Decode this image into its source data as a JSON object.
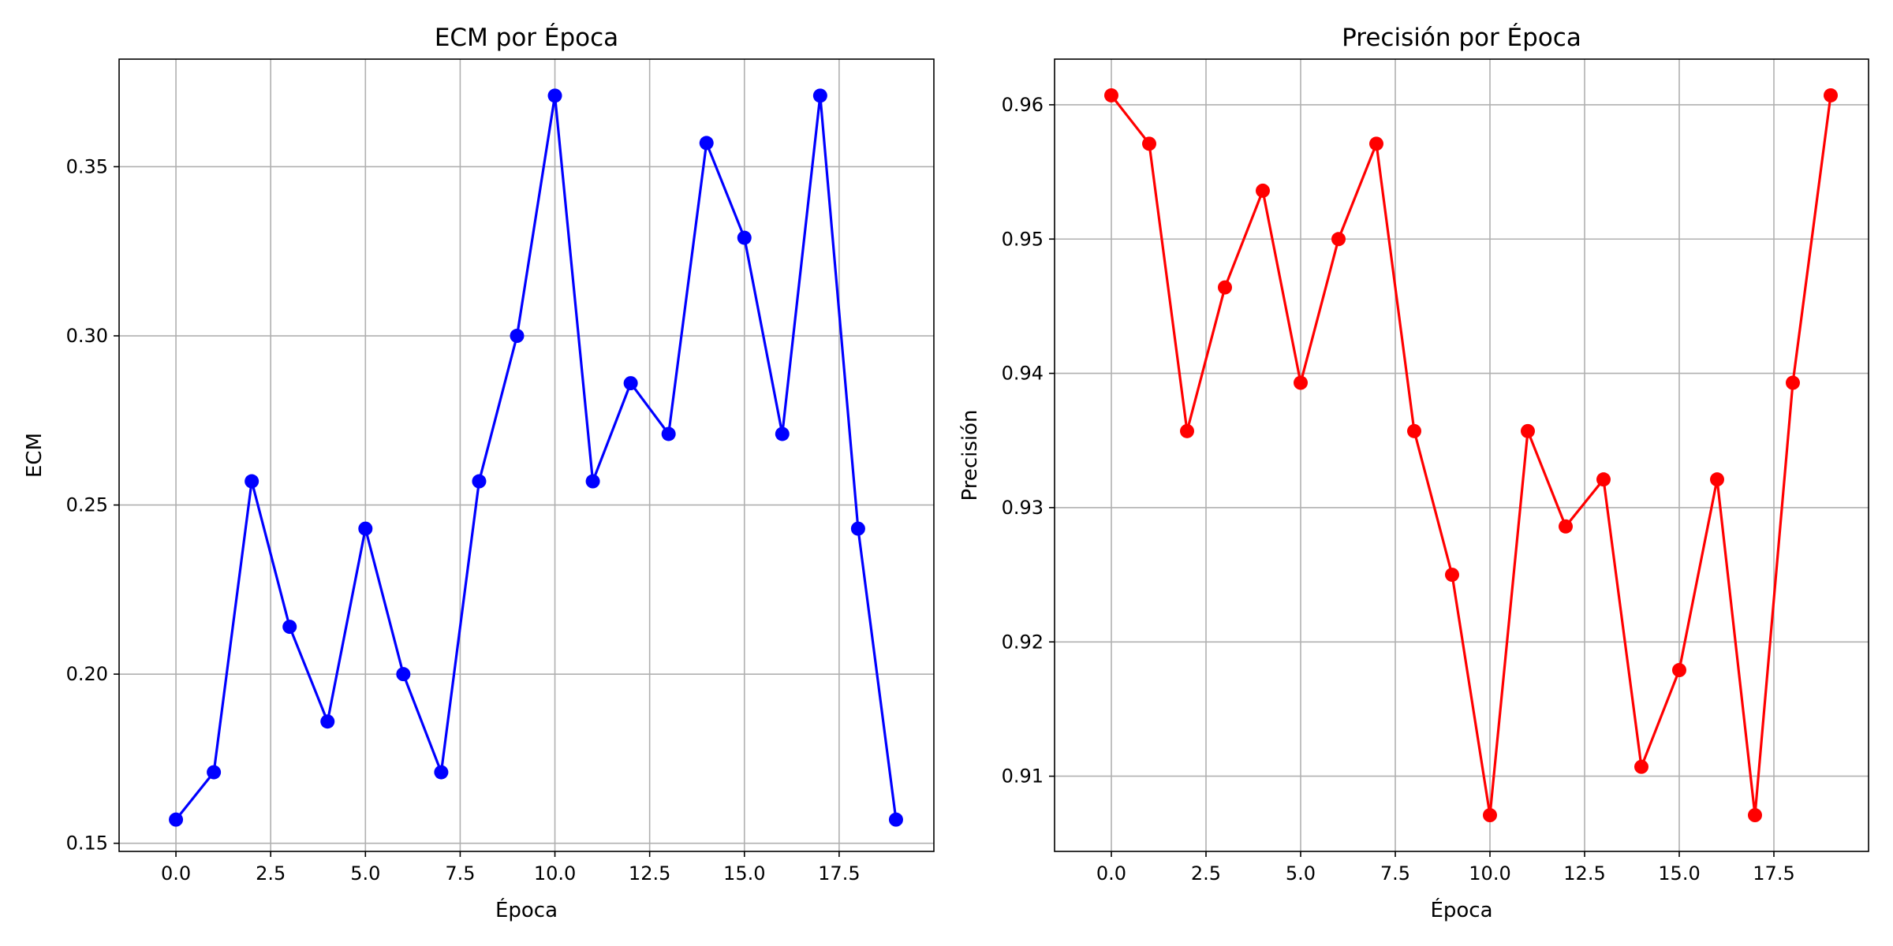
{
  "chart_data": [
    {
      "type": "line",
      "title": "ECM por Época",
      "xlabel": "Época",
      "ylabel": "ECM",
      "xlim": [
        -1.5,
        20.0
      ],
      "ylim": [
        0.1476,
        0.3818
      ],
      "xticks": [
        0.0,
        2.5,
        5.0,
        7.5,
        10.0,
        12.5,
        15.0,
        17.5
      ],
      "xtick_labels": [
        "0.0",
        "2.5",
        "5.0",
        "7.5",
        "10.0",
        "12.5",
        "15.0",
        "17.5"
      ],
      "yticks": [
        0.15,
        0.2,
        0.25,
        0.3,
        0.35
      ],
      "ytick_labels": [
        "0.15",
        "0.20",
        "0.25",
        "0.30",
        "0.35"
      ],
      "grid": true,
      "series": [
        {
          "color": "#0000ff",
          "marker": "circle",
          "x": [
            0,
            1,
            2,
            3,
            4,
            5,
            6,
            7,
            8,
            9,
            10,
            11,
            12,
            13,
            14,
            15,
            16,
            17,
            18,
            19
          ],
          "y": [
            0.157,
            0.171,
            0.257,
            0.214,
            0.186,
            0.243,
            0.2,
            0.171,
            0.257,
            0.3,
            0.371,
            0.257,
            0.286,
            0.271,
            0.357,
            0.329,
            0.271,
            0.371,
            0.243,
            0.157
          ]
        }
      ]
    },
    {
      "type": "line",
      "title": "Precisión por Época",
      "xlabel": "Época",
      "ylabel": "Precisión",
      "xlim": [
        -1.5,
        20.0
      ],
      "ylim": [
        0.9044,
        0.9634
      ],
      "xticks": [
        0.0,
        2.5,
        5.0,
        7.5,
        10.0,
        12.5,
        15.0,
        17.5
      ],
      "xtick_labels": [
        "0.0",
        "2.5",
        "5.0",
        "7.5",
        "10.0",
        "12.5",
        "15.0",
        "17.5"
      ],
      "yticks": [
        0.91,
        0.92,
        0.93,
        0.94,
        0.95,
        0.96
      ],
      "ytick_labels": [
        "0.91",
        "0.92",
        "0.93",
        "0.94",
        "0.95",
        "0.96"
      ],
      "grid": true,
      "series": [
        {
          "color": "#ff0000",
          "marker": "circle",
          "x": [
            0,
            1,
            2,
            3,
            4,
            5,
            6,
            7,
            8,
            9,
            10,
            11,
            12,
            13,
            14,
            15,
            16,
            17,
            18,
            19
          ],
          "y": [
            0.9607,
            0.9571,
            0.9357,
            0.9464,
            0.9536,
            0.9393,
            0.95,
            0.9571,
            0.9357,
            0.925,
            0.9071,
            0.9357,
            0.9286,
            0.9321,
            0.9107,
            0.9179,
            0.9321,
            0.9071,
            0.9393,
            0.9607
          ]
        }
      ]
    }
  ]
}
